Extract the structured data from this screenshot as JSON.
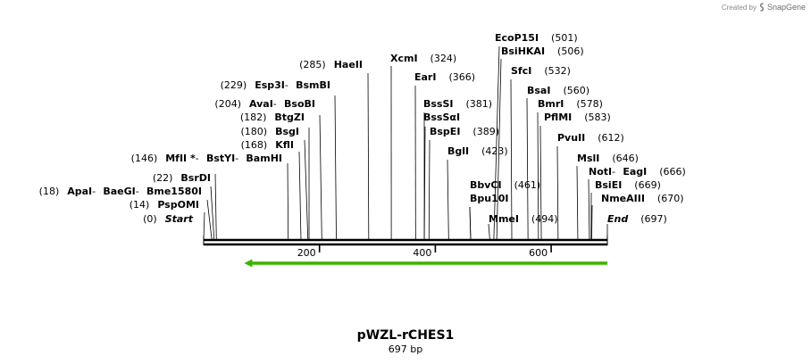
{
  "credit": {
    "text": "Created by",
    "brand": "SnapGene",
    "logo_icon": "snapgene-logo-icon"
  },
  "title": "pWZL-rCHES1",
  "subtitle": "697 bp",
  "axis": {
    "ticks": [
      200,
      400,
      600
    ]
  },
  "sequence_length": 697,
  "features": [
    {
      "type": "arrow",
      "direction": "reverse",
      "start": 70,
      "end": 697,
      "color": "#3bb300"
    }
  ],
  "sites": [
    {
      "pos": 0,
      "pos_label": "(0)",
      "parts": [
        "Start"
      ],
      "italic": true
    },
    {
      "pos": 14,
      "pos_label": "(14)",
      "parts": [
        "PspOMI"
      ]
    },
    {
      "pos": 18,
      "pos_label": "(18)",
      "parts": [
        "ApaI",
        "BaeGI",
        "Bme1580I"
      ]
    },
    {
      "pos": 22,
      "pos_label": "(22)",
      "parts": [
        "BsrDI"
      ]
    },
    {
      "pos": 146,
      "pos_label": "(146)",
      "parts": [
        "MfII *",
        "BstYI",
        "BamHI"
      ]
    },
    {
      "pos": 168,
      "pos_label": "(168)",
      "parts": [
        "KflI"
      ]
    },
    {
      "pos": 180,
      "pos_label": "(180)",
      "parts": [
        "BsgI"
      ]
    },
    {
      "pos": 182,
      "pos_label": "(182)",
      "parts": [
        "BtgZI"
      ]
    },
    {
      "pos": 204,
      "pos_label": "(204)",
      "parts": [
        "AvaI",
        "BsoBI"
      ]
    },
    {
      "pos": 229,
      "pos_label": "(229)",
      "parts": [
        "Esp3I",
        "BsmBI"
      ]
    },
    {
      "pos": 285,
      "pos_label": "(285)",
      "parts": [
        "HaeII"
      ]
    },
    {
      "pos": 324,
      "pos_label": "(324)",
      "parts": [
        "XcmI"
      ]
    },
    {
      "pos": 366,
      "pos_label": "(366)",
      "parts": [
        "EarI"
      ]
    },
    {
      "pos": 381,
      "pos_label": "(381)",
      "parts": [
        "BssSI"
      ]
    },
    {
      "pos": 381,
      "pos_label": "",
      "parts": [
        "BssSαI"
      ]
    },
    {
      "pos": 389,
      "pos_label": "(389)",
      "parts": [
        "BspEI"
      ]
    },
    {
      "pos": 423,
      "pos_label": "(423)",
      "parts": [
        "BglI"
      ]
    },
    {
      "pos": 461,
      "pos_label": "(461)",
      "parts": [
        "BbvCI"
      ]
    },
    {
      "pos": 461,
      "pos_label": "",
      "parts": [
        "Bpu10I"
      ]
    },
    {
      "pos": 494,
      "pos_label": "(494)",
      "parts": [
        "MmeI"
      ]
    },
    {
      "pos": 501,
      "pos_label": "(501)",
      "parts": [
        "EcoP15I"
      ]
    },
    {
      "pos": 506,
      "pos_label": "(506)",
      "parts": [
        "BsiHKAI"
      ]
    },
    {
      "pos": 532,
      "pos_label": "(532)",
      "parts": [
        "SfcI"
      ]
    },
    {
      "pos": 560,
      "pos_label": "(560)",
      "parts": [
        "BsaI"
      ]
    },
    {
      "pos": 578,
      "pos_label": "(578)",
      "parts": [
        "BmrI"
      ]
    },
    {
      "pos": 583,
      "pos_label": "(583)",
      "parts": [
        "PflMI"
      ]
    },
    {
      "pos": 612,
      "pos_label": "(612)",
      "parts": [
        "PvuII"
      ]
    },
    {
      "pos": 646,
      "pos_label": "(646)",
      "parts": [
        "MslI"
      ]
    },
    {
      "pos": 666,
      "pos_label": "(666)",
      "parts": [
        "NotI",
        "EagI"
      ]
    },
    {
      "pos": 669,
      "pos_label": "(669)",
      "parts": [
        "BsiEI"
      ]
    },
    {
      "pos": 670,
      "pos_label": "(670)",
      "parts": [
        "NmeAIII"
      ]
    },
    {
      "pos": 697,
      "pos_label": "(697)",
      "parts": [
        "End"
      ],
      "italic": true
    }
  ]
}
